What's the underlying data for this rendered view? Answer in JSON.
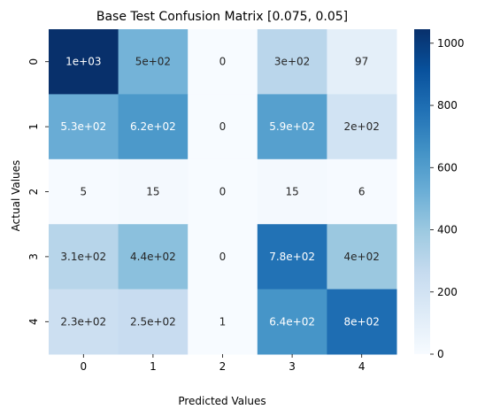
{
  "chart_data": {
    "type": "heatmap",
    "title": "Base Test Confusion Matrix [0.075, 0.05]",
    "xlabel": "Predicted Values",
    "ylabel": "Actual Values",
    "x_categories": [
      "0",
      "1",
      "2",
      "3",
      "4"
    ],
    "y_categories": [
      "0",
      "1",
      "2",
      "3",
      "4"
    ],
    "values": [
      [
        1045,
        500,
        0,
        300,
        97
      ],
      [
        530,
        620,
        0,
        590,
        200
      ],
      [
        5,
        15,
        0,
        15,
        6
      ],
      [
        310,
        440,
        0,
        780,
        400
      ],
      [
        230,
        250,
        1,
        640,
        800
      ]
    ],
    "annotations": [
      [
        "1e+03",
        "5e+02",
        "0",
        "3e+02",
        "97"
      ],
      [
        "5.3e+02",
        "6.2e+02",
        "0",
        "5.9e+02",
        "2e+02"
      ],
      [
        "5",
        "15",
        "0",
        "15",
        "6"
      ],
      [
        "3.1e+02",
        "4.4e+02",
        "0",
        "7.8e+02",
        "4e+02"
      ],
      [
        "2.3e+02",
        "2.5e+02",
        "1",
        "6.4e+02",
        "8e+02"
      ]
    ],
    "colormap": "Blues",
    "colorbar": {
      "range": [
        0,
        1045
      ],
      "ticks": [
        0,
        200,
        400,
        600,
        800,
        1000
      ]
    }
  }
}
